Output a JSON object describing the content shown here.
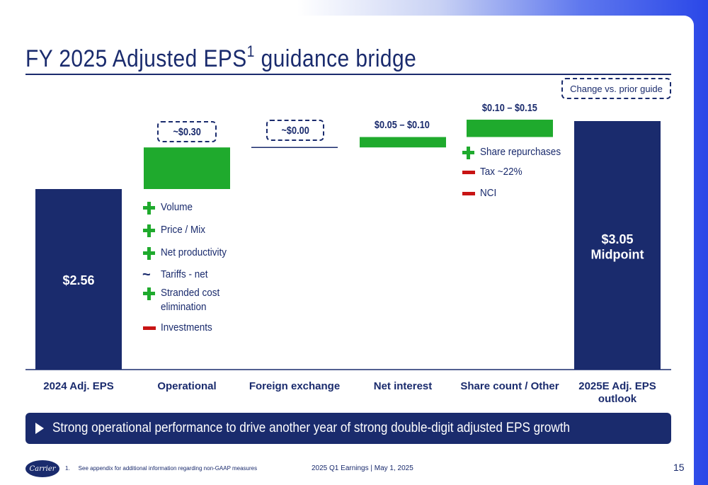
{
  "title": "FY 2025 Adjusted EPS",
  "title_sup": "1",
  "title_suffix": "guidance bridge",
  "change_box": "Change vs. prior guide",
  "callouts": {
    "operational": "~$0.30",
    "fx": "~$0.00"
  },
  "top_labels": {
    "net_interest": "$0.05 – $0.10",
    "share_count": "$0.10 – $0.15"
  },
  "operational_drivers": [
    {
      "sign": "plus",
      "text": "Volume"
    },
    {
      "sign": "plus",
      "text": "Price / Mix"
    },
    {
      "sign": "plus",
      "text": "Net productivity"
    },
    {
      "sign": "tilde",
      "text": "Tariffs - net"
    },
    {
      "sign": "plus",
      "text": "Stranded cost\nelimination"
    },
    {
      "sign": "minus",
      "text": "Investments"
    }
  ],
  "share_drivers": [
    {
      "sign": "plus",
      "text": "Share repurchases"
    },
    {
      "sign": "minus",
      "text": "Tax ~22%"
    },
    {
      "sign": "minus",
      "text": "NCI"
    }
  ],
  "chart_data": {
    "type": "bar",
    "subtype": "waterfall",
    "categories": [
      "2024 Adj. EPS",
      "Operational",
      "Foreign exchange",
      "Net interest",
      "Share count / Other",
      "2025E Adj. EPS outlook"
    ],
    "start": 2.56,
    "deltas": [
      0.3,
      0.0,
      0.075,
      0.125
    ],
    "end": 3.05,
    "bar_labels": [
      "$2.56",
      "",
      "",
      "",
      "",
      "$3.05\nMidpoint"
    ],
    "colors": {
      "total": "#1a2b6d",
      "increase": "#1faa2d",
      "accent": "#1a2b6d"
    }
  },
  "banner": "Strong operational performance to drive another year of strong double-digit adjusted EPS growth",
  "footer": {
    "logo": "Carrier",
    "footnote_num": "1.",
    "footnote_text": "See appendix for additional information regarding non-GAAP measures",
    "center": "2025 Q1 Earnings | May 1, 2025",
    "page": "15"
  }
}
